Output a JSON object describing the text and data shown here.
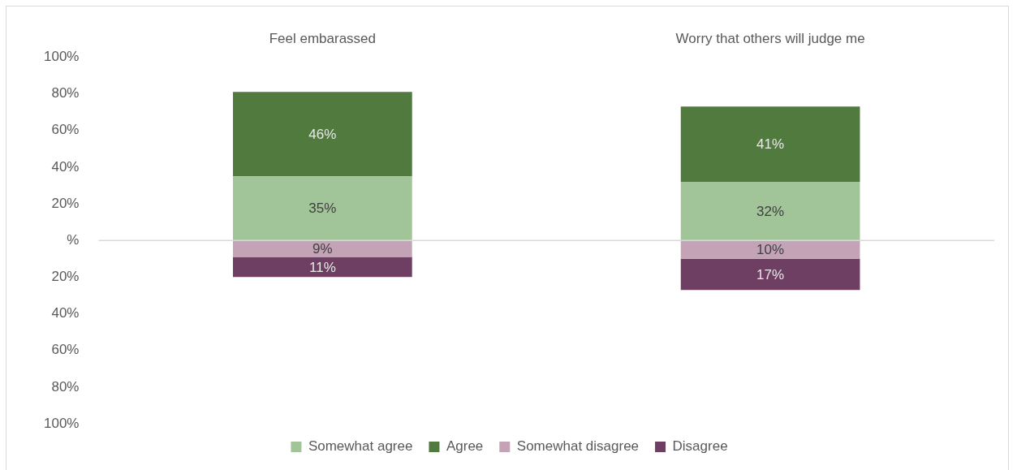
{
  "chart_data": {
    "type": "bar",
    "categories": [
      "Feel embarassed",
      "Worry that others will judge me"
    ],
    "series": [
      {
        "name": "Somewhat agree",
        "color": "#a2c499",
        "values": [
          35,
          32
        ],
        "base": [
          0,
          0
        ],
        "value_labels": [
          "35%",
          "32%"
        ]
      },
      {
        "name": "Agree",
        "color": "#507a3e",
        "values": [
          46,
          41
        ],
        "base": [
          35,
          32
        ],
        "value_labels": [
          "46%",
          "41%"
        ]
      },
      {
        "name": "Somewhat disagree",
        "color": "#c4a3b6",
        "values": [
          9,
          10
        ],
        "base": [
          -9,
          -10
        ],
        "value_labels": [
          "9%",
          "10%"
        ]
      },
      {
        "name": "Disagree",
        "color": "#6e3f62",
        "values": [
          11,
          17
        ],
        "base": [
          -20,
          -27
        ],
        "value_labels": [
          "11%",
          "17%"
        ]
      }
    ],
    "ylim": [
      -100,
      100
    ],
    "yticks": [
      {
        "value": 100,
        "label": "100%"
      },
      {
        "value": 80,
        "label": "80%"
      },
      {
        "value": 60,
        "label": "60%"
      },
      {
        "value": 40,
        "label": "40%"
      },
      {
        "value": 20,
        "label": "20%"
      },
      {
        "value": 0,
        "label": "%"
      },
      {
        "value": -20,
        "label": "20%"
      },
      {
        "value": -40,
        "label": "40%"
      },
      {
        "value": -60,
        "label": "60%"
      },
      {
        "value": -80,
        "label": "80%"
      },
      {
        "value": -100,
        "label": "100%"
      }
    ],
    "legend": "bottom"
  }
}
